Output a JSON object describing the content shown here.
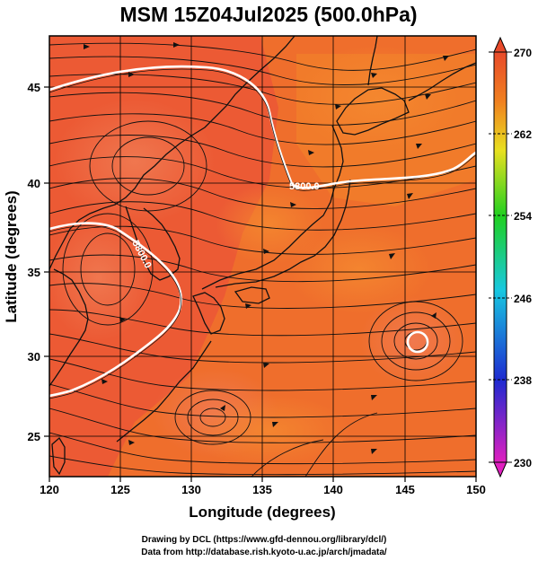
{
  "title": "MSM 15Z04Jul2025 (500.0hPa)",
  "axes": {
    "xlabel": "Longitude (degrees)",
    "ylabel": "Latitude  (degrees)",
    "x_ticks": [
      "120",
      "125",
      "130",
      "135",
      "140",
      "145",
      "150"
    ],
    "y_ticks": [
      "25",
      "30",
      "35",
      "40",
      "45"
    ],
    "x_range": [
      120,
      150
    ],
    "y_range": [
      22.4,
      47.6
    ]
  },
  "colorbar": {
    "labels": [
      "270",
      "262",
      "254",
      "246",
      "238",
      "230"
    ],
    "range": [
      230,
      270
    ],
    "colors": [
      "#e020c0",
      "#1e2ad0",
      "#18c8e0",
      "#20d020",
      "#e8e020",
      "#f08020",
      "#e84a2a"
    ]
  },
  "contours": [
    {
      "label": "5800.0"
    },
    {
      "label": "5800.0"
    }
  ],
  "credits": {
    "line1": "Drawing by DCL (https://www.gfd-dennou.org/library/dcl/)",
    "line2": "Data from http://database.rish.kyoto-u.ac.jp/arch/jmadata/"
  },
  "chart_data": {
    "type": "heatmap",
    "title": "MSM 15Z04Jul2025 (500.0hPa)",
    "xlabel": "Longitude (degrees)",
    "ylabel": "Latitude  (degrees)",
    "xlim": [
      120,
      150
    ],
    "ylim": [
      22.4,
      47.6
    ],
    "x_ticks": [
      120,
      125,
      130,
      135,
      140,
      145,
      150
    ],
    "y_ticks": [
      25,
      30,
      35,
      40,
      45
    ],
    "colorbar_range": [
      230,
      270
    ],
    "colorbar_ticks": [
      230,
      238,
      246,
      254,
      262,
      270
    ],
    "grid": true,
    "contour_labels": [
      "5800.0",
      "5800.0"
    ]
  }
}
